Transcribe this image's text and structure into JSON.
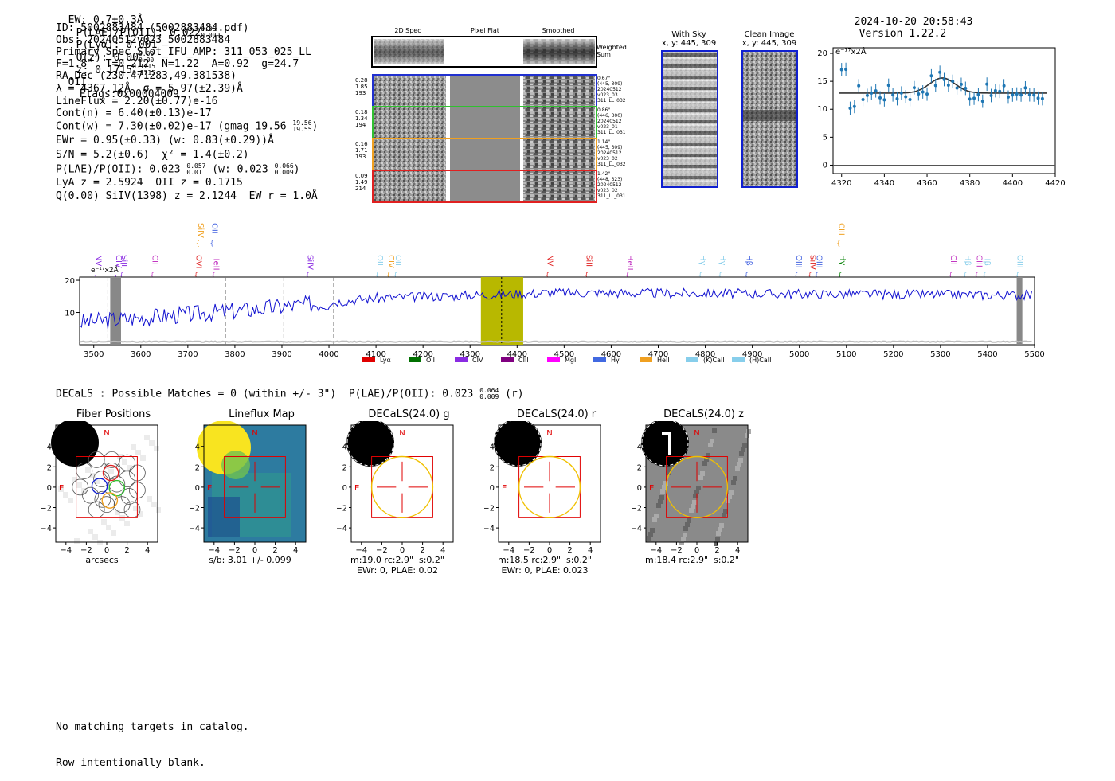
{
  "header": {
    "ew": "EW: 0.7±0.3Å",
    "plae_label": "P(LAE)/P(OII): 0.022",
    "plae_hi": "0.05",
    "plae_lo": "0.009",
    "plya": "P(Lyα): 0.001",
    "qz_label": "Q(z): 0.00",
    "qz_hi": "0.00",
    "qz_lo": "0.00",
    "z_label": "z: 0.1715",
    "z_hi": "0.1715",
    "z_lo": "0.1715",
    "z_line": "OII",
    "flags": "Flags:0x00004009",
    "timestamp": "2024-10-20 20:58:43",
    "version": "Version 1.22.2"
  },
  "info": {
    "id": "ID: 5002883484 (5002883484.pdf)",
    "obs": "Obs: 20240512v023_5002883484",
    "primary": "Primary Spec_Slot_IFU_AMP: 311_053_025_LL",
    "params": "F=1.8\"  T=0.212  N=1.22  A=0.92  g=24.7",
    "radec": "RA,Dec (230.471283,49.381538)",
    "lambda": "λ = 4367.12Å  σ = 5.97(±2.39)Å",
    "lineflux": "LineFlux = 2.20(±0.77)e-16",
    "contn": "Cont(n) = 6.40(±0.13)e-17",
    "contw": "Cont(w) = 7.30(±0.02)e-17 (gmag 19.56",
    "contw_hi": "19.56",
    "contw_lo": "19.55",
    "contw_end": ")",
    "ewr": "EWr = 0.95(±0.33) (w: 0.83(±0.29))Å",
    "sn": "S/N = 5.2(±0.6)  χ² = 1.4(±0.2)",
    "plae2": "P(LAE)/P(OII): 0.023",
    "plae2_hi": "0.057",
    "plae2_lo": "0.01",
    "plae2_w": "(w: 0.023",
    "plae2_w_hi": "0.066",
    "plae2_w_lo": "0.009",
    "plae2_end": ")",
    "lya": "LyA z = 2.5924  OII z = 0.1715",
    "q": "Q(0.00) SiIV(1398) z = 2.1244  EW r = 1.0Å"
  },
  "spec2d": {
    "col_titles": [
      "2D Spec",
      "Pixel Flat",
      "Smoothed"
    ],
    "weighted": "Weighted\nSum",
    "rows": [
      {
        "nums": [
          "0.28",
          "1.85",
          "193"
        ],
        "meta": [
          "0.67\"",
          "(445, 309)",
          "20240512",
          "v023_03",
          "311_LL_032"
        ],
        "color": "#2030d0"
      },
      {
        "nums": [
          "0.18",
          "1.34",
          "194"
        ],
        "meta": [
          "0.86\"",
          "(446, 300)",
          "20240512",
          "v023_01",
          "311_LL_031"
        ],
        "color": "#30c030"
      },
      {
        "nums": [
          "0.16",
          "1.71",
          "193"
        ],
        "meta": [
          "1.14\"",
          "(445, 309)",
          "20240512",
          "v023_02",
          "311_LL_032"
        ],
        "color": "#f0a020"
      },
      {
        "nums": [
          "0.09",
          "1.49",
          "214"
        ],
        "meta": [
          "1.42\"",
          "(448, 323)",
          "20240512",
          "v023_02",
          "311_LL_031"
        ],
        "color": "#e02020"
      }
    ]
  },
  "with_sky": {
    "title": "With Sky",
    "coords": "x, y: 445, 309"
  },
  "clean_image": {
    "title": "Clean Image",
    "coords": "x, y: 445, 309"
  },
  "fit_plot": {
    "unit": "e⁻¹⁷x2Å",
    "xticks": [
      "4320",
      "4340",
      "4360",
      "4380",
      "4400",
      "4420"
    ],
    "yticks": [
      "0",
      "5",
      "10",
      "15",
      "20"
    ]
  },
  "full_spectrum": {
    "unit": "e⁻¹⁷x2Å",
    "xticks": [
      "3500",
      "3600",
      "3700",
      "3800",
      "3900",
      "4000",
      "4100",
      "4200",
      "4300",
      "4400",
      "4500",
      "4600",
      "4700",
      "4800",
      "4900",
      "5000",
      "5100",
      "5200",
      "5300",
      "5400",
      "5500"
    ],
    "yticks": [
      "10",
      "20"
    ],
    "lines": [
      {
        "label": "NV",
        "x": 3505,
        "color": "#8a2be2",
        "row": 1
      },
      {
        "label": "CIV",
        "x": 3548,
        "color": "#8a2be2",
        "row": 1
      },
      {
        "label": "SiII",
        "x": 3560,
        "color": "#8a2be2",
        "row": 1
      },
      {
        "label": "CII",
        "x": 3625,
        "color": "#c030c0",
        "row": 1
      },
      {
        "label": "OVI",
        "x": 3718,
        "color": "#e02020",
        "row": 1
      },
      {
        "label": "SiIV",
        "x": 3722,
        "color": "#f0a020",
        "row": 0
      },
      {
        "label": "OII",
        "x": 3752,
        "color": "#4060e0",
        "row": 0
      },
      {
        "label": "HeII",
        "x": 3755,
        "color": "#c030c0",
        "row": 1
      },
      {
        "label": "SiIV",
        "x": 3955,
        "color": "#8a2be2",
        "row": 1
      },
      {
        "label": "OII",
        "x": 4103,
        "color": "#87ceeb",
        "row": 1
      },
      {
        "label": "CIV",
        "x": 4127,
        "color": "#f0a020",
        "row": 1
      },
      {
        "label": "OII",
        "x": 4142,
        "color": "#87ceeb",
        "row": 1
      },
      {
        "label": "NV",
        "x": 4465,
        "color": "#e02020",
        "row": 1
      },
      {
        "label": "SiII",
        "x": 4548,
        "color": "#e02020",
        "row": 1
      },
      {
        "label": "HeII",
        "x": 4635,
        "color": "#c030c0",
        "row": 1
      },
      {
        "label": "Hγ",
        "x": 4790,
        "color": "#87ceeb",
        "row": 1
      },
      {
        "label": "Hγ",
        "x": 4832,
        "color": "#87ceeb",
        "row": 1
      },
      {
        "label": "Hβ",
        "x": 4888,
        "color": "#4060e0",
        "row": 1
      },
      {
        "label": "OIII",
        "x": 4994,
        "color": "#4060e0",
        "row": 1
      },
      {
        "label": "SiIV",
        "x": 5023,
        "color": "#e02020",
        "row": 1
      },
      {
        "label": "OIII",
        "x": 5037,
        "color": "#4060e0",
        "row": 1
      },
      {
        "label": "CIII",
        "x": 5084,
        "color": "#f0a020",
        "row": 0
      },
      {
        "label": "Hγ",
        "x": 5087,
        "color": "#008000",
        "row": 1
      },
      {
        "label": "CII",
        "x": 5322,
        "color": "#c030c0",
        "row": 1
      },
      {
        "label": "Hβ",
        "x": 5353,
        "color": "#87ceeb",
        "row": 1
      },
      {
        "label": "CIII",
        "x": 5377,
        "color": "#c030c0",
        "row": 1
      },
      {
        "label": "Hβ",
        "x": 5394,
        "color": "#87ceeb",
        "row": 1
      },
      {
        "label": "OIII",
        "x": 5464,
        "color": "#87ceeb",
        "row": 1
      }
    ],
    "legend": [
      {
        "label": "Lyα",
        "color": "#e00000"
      },
      {
        "label": "OII",
        "color": "#007000"
      },
      {
        "label": "CIV",
        "color": "#8a2be2"
      },
      {
        "label": "CIII",
        "color": "#800080"
      },
      {
        "label": "MgII",
        "color": "#ff00ff"
      },
      {
        "label": "Hγ",
        "color": "#4169e1"
      },
      {
        "label": "HeII",
        "color": "#f0a020"
      },
      {
        "label": "(K)CaII",
        "color": "#87ceeb"
      },
      {
        "label": "(H)CaII",
        "color": "#87ceeb"
      }
    ]
  },
  "decals_line": "DECaLS : Possible Matches = 0 (within +/- 3\")  P(LAE)/P(OII): 0.023",
  "decals_hi": "0.064",
  "decals_lo": "0.009",
  "decals_band": "(r)",
  "cutouts": [
    {
      "title": "Fiber Positions",
      "cap1": "arcsecs",
      "cap2": ""
    },
    {
      "title": "Lineflux Map",
      "cap1": "s/b: 3.01 +/- 0.099",
      "cap2": ""
    },
    {
      "title": "DECaLS(24.0) g",
      "cap1": "m:19.0 rc:2.9\"  s:0.2\"",
      "cap2": "EWr: 0, PLAE: 0.02"
    },
    {
      "title": "DECaLS(24.0) r",
      "cap1": "m:18.5 rc:2.9\"  s:0.2\"",
      "cap2": "EWr: 0, PLAE: 0.023"
    },
    {
      "title": "DECaLS(24.0) z",
      "cap1": "m:18.4 rc:2.9\"  s:0.2\"",
      "cap2": ""
    }
  ],
  "cutout_ticks": {
    "x": [
      "−4",
      "−2",
      "0",
      "2",
      "4"
    ],
    "y": [
      "4",
      "2",
      "0",
      "−2",
      "−4"
    ],
    "north": "N",
    "east": "E"
  },
  "footer": {
    "line1": "No matching targets in catalog.",
    "line2": "Row intentionally blank."
  }
}
